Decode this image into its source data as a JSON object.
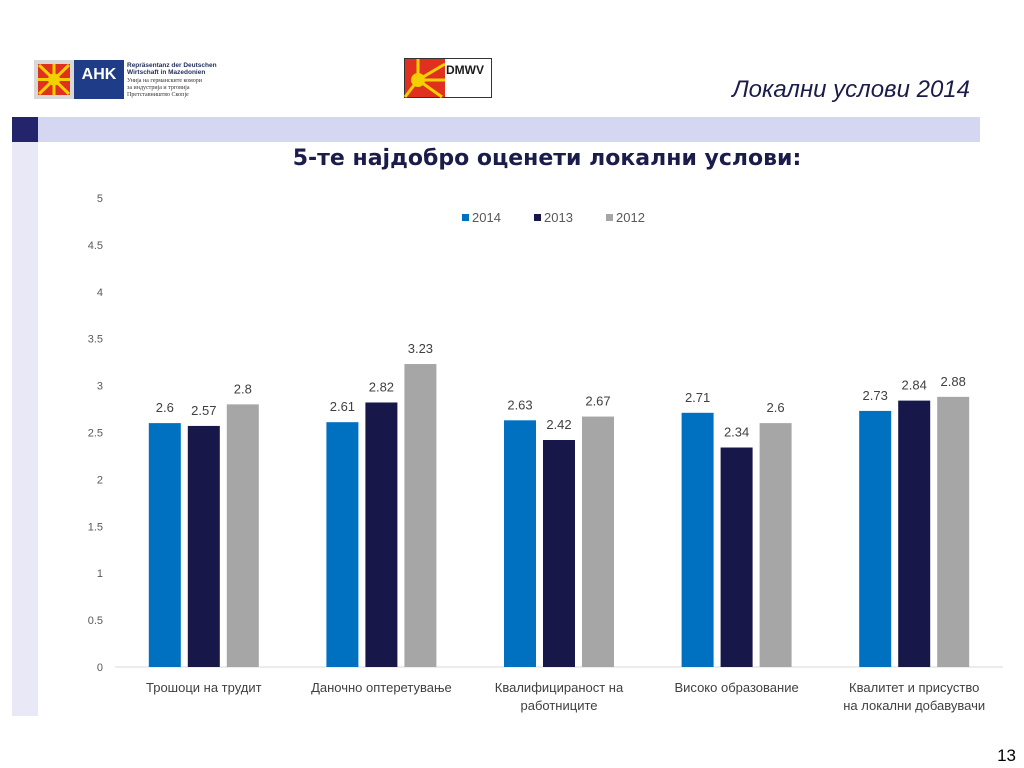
{
  "header": {
    "heading": "Локални услови 2014",
    "page_number": "13"
  },
  "logos": {
    "ahk": {
      "mark": "AHK",
      "lines": [
        "Repräsentanz der Deutschen",
        "Wirtschaft in Mazedonien",
        "Унија на германските комори",
        "за индустрија и трговија",
        "Претставништво Скопје"
      ]
    },
    "dmwv": {
      "mark": "DMWV"
    }
  },
  "colors": {
    "band": "#d5d6f1",
    "band_square": "#24246c",
    "series_2014": "#0070c0",
    "series_2013": "#17174a",
    "series_2012": "#a6a6a6"
  },
  "chart_data": {
    "type": "bar",
    "title": "5-те најдобро оценети локални услови:",
    "categories": [
      [
        "Трошоци на трудит"
      ],
      [
        "Даночно оптеретување"
      ],
      [
        "Квалифицираност на",
        "работниците"
      ],
      [
        "Високо образование"
      ],
      [
        "Квалитет и присуство",
        "на локални добавувачи"
      ]
    ],
    "series": [
      {
        "name": "2014",
        "color": "#0070c0",
        "values": [
          2.6,
          2.61,
          2.63,
          2.71,
          2.73
        ]
      },
      {
        "name": "2013",
        "color": "#17174a",
        "values": [
          2.57,
          2.82,
          2.42,
          2.34,
          2.84
        ]
      },
      {
        "name": "2012",
        "color": "#a6a6a6",
        "values": [
          2.8,
          3.23,
          2.67,
          2.6,
          2.88
        ]
      }
    ],
    "ylim": [
      0,
      5
    ],
    "yticks": [
      0,
      0.5,
      1,
      1.5,
      2,
      2.5,
      3,
      3.5,
      4,
      4.5,
      5
    ],
    "legend_position": "top",
    "grid": false,
    "xlabel": "",
    "ylabel": ""
  }
}
